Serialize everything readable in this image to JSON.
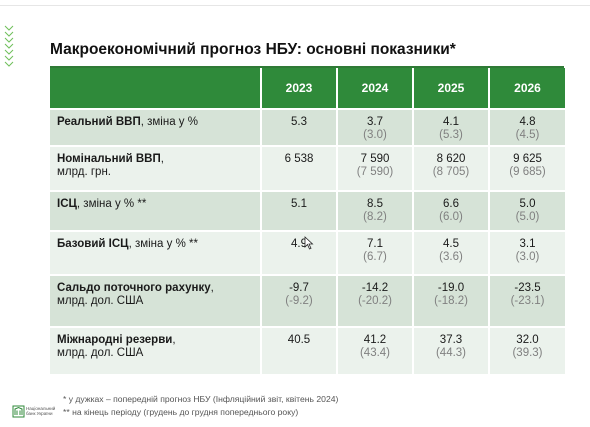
{
  "title": "Макроекономічний прогноз НБУ: основні показники*",
  "years": [
    "2023",
    "2024",
    "2025",
    "2026"
  ],
  "rows": [
    {
      "label_bold": "Реальний ВВП",
      "label_rest": ", зміна у %",
      "label_line2": "",
      "values": [
        {
          "v": "5.3",
          "p": ""
        },
        {
          "v": "3.7",
          "p": "(3.0)"
        },
        {
          "v": "4.1",
          "p": "(5.3)"
        },
        {
          "v": "4.8",
          "p": "(4.5)"
        }
      ]
    },
    {
      "label_bold": "Номінальний ВВП",
      "label_rest": ",",
      "label_line2": "млрд. грн.",
      "values": [
        {
          "v": "6 538",
          "p": ""
        },
        {
          "v": "7 590",
          "p": "(7 590)"
        },
        {
          "v": "8 620",
          "p": "(8 705)"
        },
        {
          "v": "9 625",
          "p": "(9 685)"
        }
      ]
    },
    {
      "label_bold": "ІСЦ",
      "label_rest": ", зміна у % **",
      "label_line2": "",
      "values": [
        {
          "v": "5.1",
          "p": ""
        },
        {
          "v": "8.5",
          "p": "(8.2)"
        },
        {
          "v": "6.6",
          "p": "(6.0)"
        },
        {
          "v": "5.0",
          "p": "(5.0)"
        }
      ]
    },
    {
      "label_bold": "Базовий ІСЦ",
      "label_rest": ", зміна у % **",
      "label_line2": "",
      "values": [
        {
          "v": "4.9",
          "p": ""
        },
        {
          "v": "7.1",
          "p": "(6.7)"
        },
        {
          "v": "4.5",
          "p": "(3.6)"
        },
        {
          "v": "3.1",
          "p": "(3.0)"
        }
      ]
    },
    {
      "label_bold": "Сальдо поточного рахунку",
      "label_rest": ",",
      "label_line2": "млрд. дол. США",
      "values": [
        {
          "v": "-9.7",
          "p": "(-9.2)"
        },
        {
          "v": "-14.2",
          "p": "(-20.2)"
        },
        {
          "v": "-19.0",
          "p": "(-18.2)"
        },
        {
          "v": "-23.5",
          "p": "(-23.1)"
        }
      ]
    },
    {
      "label_bold": "Міжнародні резерви",
      "label_rest": ",",
      "label_line2": "млрд. дол. США",
      "values": [
        {
          "v": "40.5",
          "p": ""
        },
        {
          "v": "41.2",
          "p": "(43.4)"
        },
        {
          "v": "37.3",
          "p": "(44.3)"
        },
        {
          "v": "32.0",
          "p": "(39.3)"
        }
      ]
    }
  ],
  "footnotes": [
    "* у дужках – попередній прогноз НБУ (Інфляційний звіт, квітень 2024)",
    "** на кінець періоду (грудень до грудня попереднього року)"
  ],
  "logo": {
    "icon": "nbu-logo-icon",
    "line1": "Національний",
    "line2": "банк України"
  },
  "colors": {
    "header_green": "#2f8a3a",
    "row_dark": "#d6e3d7",
    "row_light": "#ebf2ec",
    "prev_gray": "#808080"
  }
}
